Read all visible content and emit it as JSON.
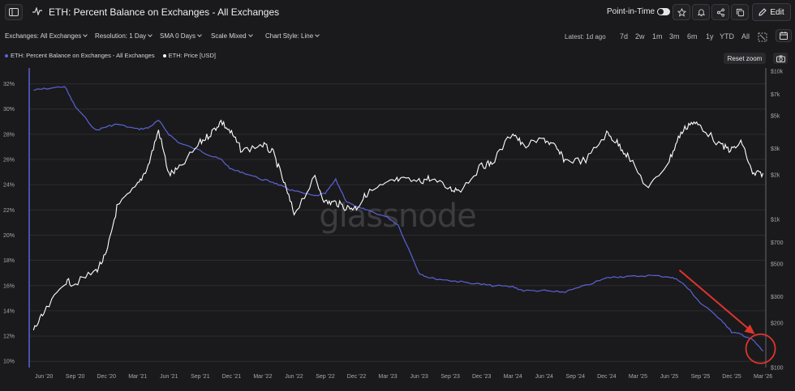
{
  "header": {
    "title": "ETH: Percent Balance on Exchanges - All Exchanges",
    "point_in_time_label": "Point-in-Time",
    "edit_label": "Edit"
  },
  "controls": {
    "exchanges": "Exchanges: All Exchanges",
    "resolution": "Resolution: 1 Day",
    "sma": "SMA 0 Days",
    "scale": "Scale Mixed",
    "chart_style": "Chart Style: Line",
    "latest": "Latest: 1d ago",
    "ranges": [
      "7d",
      "2w",
      "1m",
      "3m",
      "6m",
      "1y",
      "YTD",
      "All"
    ]
  },
  "legend": {
    "balance": "ETH: Percent Balance on Exchanges - All Exchanges",
    "price": "ETH: Price [USD]",
    "reset_zoom": "Reset zoom"
  },
  "colors": {
    "balance_line": "#5b63d6",
    "price_line": "#ffffff",
    "annotation": "#e0342b",
    "left_axis": "#5b63d6",
    "grid": "#2c2c30"
  },
  "chart_data": {
    "type": "line",
    "watermark": "glassnode",
    "x": [
      "May 2020",
      "Jun 2020",
      "Aug 2020",
      "Sep 2020",
      "Nov 2020",
      "Dec 2020",
      "Jan 2021",
      "Mar 2021",
      "Apr 2021",
      "May 2021",
      "Jun 2021",
      "Jul 2021",
      "Sep 2021",
      "Oct 2021",
      "Nov 2021",
      "Dec 2021",
      "Jan 2022",
      "Mar 2022",
      "Apr 2022",
      "May 2022",
      "Jun 2022",
      "Aug 2022",
      "Sep 2022",
      "Oct 2022",
      "Nov 2022",
      "Dec 2022",
      "Jan 2023",
      "Mar 2023",
      "Apr 2023",
      "Jun 2023",
      "Jul 2023",
      "Sep 2023",
      "Oct 2023",
      "Dec 2023",
      "Jan 2024",
      "Mar 2024",
      "Apr 2024",
      "Jun 2024",
      "Jul 2024",
      "Aug 2024",
      "Oct 2024",
      "Dec 2024",
      "Jan 2025",
      "Feb 2025",
      "Apr 2025",
      "Jun 2025",
      "Jul 2025",
      "Aug 2025",
      "Sep 2025",
      "Nov 2025",
      "Dec 2025",
      "Jan 2026",
      "Feb 2026",
      "Mar 2026"
    ],
    "series": [
      {
        "name": "ETH: Percent Balance on Exchanges - All Exchanges",
        "axis": "left",
        "unit": "%",
        "values": [
          31.5,
          31.6,
          31.8,
          30.2,
          28.3,
          28.6,
          28.8,
          28.4,
          28.5,
          29.1,
          28.0,
          27.3,
          26.7,
          26.3,
          26.0,
          25.2,
          25.0,
          24.4,
          24.2,
          23.8,
          23.5,
          23.1,
          23.3,
          24.4,
          22.7,
          22.2,
          22.0,
          21.4,
          20.8,
          17.0,
          16.6,
          16.4,
          16.3,
          16.1,
          16.0,
          15.9,
          15.6,
          15.6,
          15.5,
          15.5,
          16.0,
          16.6,
          16.7,
          16.7,
          16.8,
          16.7,
          16.4,
          15.6,
          14.6,
          13.3,
          12.3,
          12.1,
          11.7,
          10.8
        ]
      },
      {
        "name": "ETH: Price [USD]",
        "axis": "right",
        "unit": "USD",
        "values": [
          180,
          230,
          380,
          370,
          450,
          580,
          1200,
          1700,
          2300,
          4000,
          2000,
          2200,
          3300,
          3800,
          4600,
          3800,
          2900,
          3200,
          2800,
          1800,
          1100,
          1900,
          1300,
          1300,
          1200,
          1200,
          1500,
          1750,
          1850,
          1800,
          1900,
          1600,
          1600,
          2300,
          2400,
          3900,
          3100,
          3500,
          3100,
          2500,
          2500,
          3800,
          3300,
          2700,
          1600,
          2500,
          3700,
          4500,
          4300,
          3100,
          2950,
          3300,
          2000,
          2050
        ]
      }
    ],
    "left_axis": {
      "ticks": [
        "10%",
        "12%",
        "14%",
        "16%",
        "18%",
        "20%",
        "22%",
        "24%",
        "26%",
        "28%",
        "30%",
        "32%"
      ],
      "range": [
        9.5,
        33
      ]
    },
    "right_axis": {
      "ticks": [
        "$10k",
        "$7k",
        "$5k",
        "$3k",
        "$2k",
        "$1k",
        "$700",
        "$500",
        "$300",
        "$200",
        "$100"
      ],
      "scale": "log",
      "range": [
        100,
        10000
      ]
    },
    "x_ticks": [
      "Jun '20",
      "Sep '20",
      "Dec '20",
      "Mar '21",
      "Jun '21",
      "Sep '21",
      "Dec '21",
      "Mar '22",
      "Jun '22",
      "Sep '22",
      "Dec '22",
      "Mar '23",
      "Jun '23",
      "Sep '23",
      "Dec '23",
      "Mar '24",
      "Jun '24",
      "Sep '24",
      "Dec '24",
      "Mar '25",
      "Jun '25",
      "Sep '25",
      "Dec '25",
      "Mar '26"
    ],
    "annotation": {
      "type": "arrow-and-circle",
      "points_to": "Mar 2026",
      "color": "#e0342b"
    },
    "grid": true,
    "legend_position": "top-left"
  }
}
